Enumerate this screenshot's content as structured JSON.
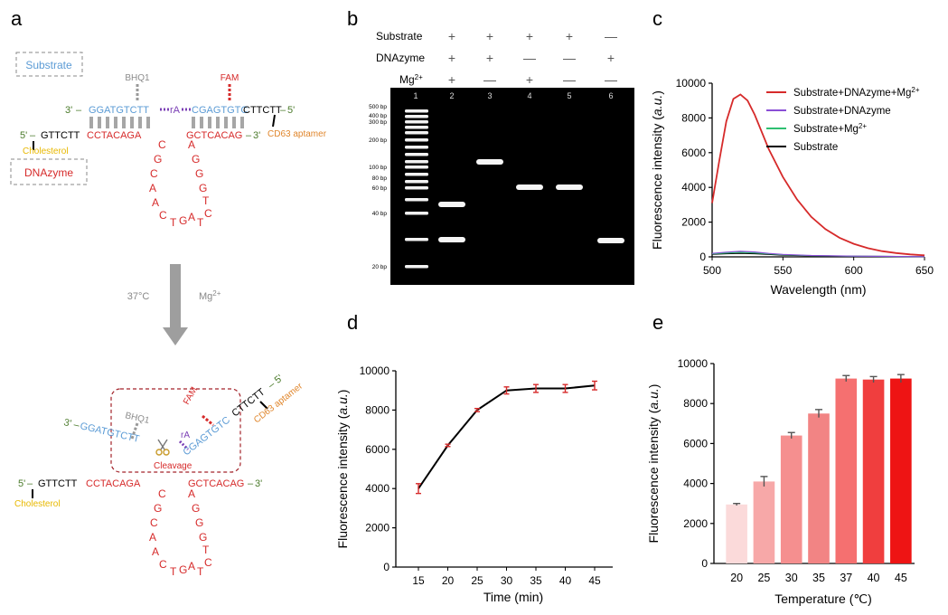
{
  "panels": {
    "a": "a",
    "b": "b",
    "c": "c",
    "d": "d",
    "e": "e"
  },
  "schematic": {
    "substrate_box": "Substrate",
    "dnazyme_box": "DNAzyme",
    "bhq1": "BHQ1",
    "fam": "FAM",
    "cholesterol": "Cholesterol",
    "aptamer": "CD63 aptamer",
    "substrate_left": "GGATGTCTT",
    "ra": "rA",
    "substrate_right": "CGAGTGTC",
    "substrate_tail": "CTTCTT",
    "dz_lead": "GTTCTT",
    "dz_left": "CCTACAGA",
    "dz_right": "GCTCACAG",
    "three_prime": "3'",
    "five_prime": "5'",
    "loop_left": [
      "C",
      "G",
      "C",
      "A",
      "A",
      "C"
    ],
    "loop_bottom": [
      "T",
      "G",
      "A"
    ],
    "loop_right": [
      "A",
      "G",
      "G",
      "G",
      "T",
      "C",
      "T"
    ],
    "condition_temp": "37°C",
    "condition_mg": "Mg",
    "condition_mg_sup": "2+",
    "cleavage": "Cleavage",
    "colors": {
      "blue": "#5b9bd5",
      "red": "#d62a2a",
      "green": "#4a7a2a",
      "orange": "#e0862c",
      "yellow": "#e8b800",
      "purple": "#7b3fb5",
      "gray": "#9e9e9e"
    }
  },
  "gel": {
    "row_labels": [
      "Substrate",
      "DNAzyme",
      "Mg"
    ],
    "mg_sup": "2+",
    "signs": [
      [
        "+",
        "+",
        "+",
        "+",
        "—"
      ],
      [
        "+",
        "+",
        "—",
        "—",
        "+"
      ],
      [
        "+",
        "—",
        "+",
        "—",
        "—"
      ]
    ],
    "lane_numbers": [
      "1",
      "2",
      "3",
      "4",
      "5",
      "6"
    ],
    "ladder_labels": [
      "500 bp",
      "400 bp",
      "300 bp",
      "200 bp",
      "100 bp",
      "80 bp",
      "60 bp",
      "40 bp",
      "20 bp"
    ]
  },
  "chart_data": [
    {
      "panel": "c",
      "type": "line",
      "xlabel": "Wavelength (nm)",
      "ylabel": "Fluorescence intensity (a.u.)",
      "xlim": [
        500,
        650
      ],
      "ylim": [
        0,
        10000
      ],
      "xticks": [
        500,
        550,
        600,
        650
      ],
      "yticks": [
        0,
        2000,
        4000,
        6000,
        8000,
        10000
      ],
      "legend_position": "top-right",
      "series": [
        {
          "name": "Substrate+DNAzyme+Mg2+",
          "color": "#d62a2a",
          "x": [
            500,
            505,
            510,
            515,
            520,
            525,
            530,
            540,
            550,
            560,
            570,
            580,
            590,
            600,
            610,
            620,
            630,
            640,
            650
          ],
          "y": [
            3100,
            5500,
            7800,
            9100,
            9350,
            9000,
            8200,
            6200,
            4600,
            3300,
            2300,
            1600,
            1100,
            750,
            500,
            330,
            220,
            140,
            90
          ]
        },
        {
          "name": "Substrate+DNAzyme",
          "color": "#8a4fd6",
          "x": [
            500,
            510,
            520,
            530,
            540,
            550,
            570,
            600,
            650
          ],
          "y": [
            200,
            270,
            320,
            280,
            200,
            140,
            80,
            40,
            10
          ]
        },
        {
          "name": "Substrate+Mg2+",
          "color": "#2fbf71",
          "x": [
            500,
            510,
            520,
            530,
            540,
            550,
            570,
            600,
            650
          ],
          "y": [
            170,
            220,
            260,
            230,
            170,
            120,
            70,
            35,
            10
          ]
        },
        {
          "name": "Substrate",
          "color": "#000000",
          "x": [
            500,
            510,
            520,
            530,
            540,
            550,
            570,
            600,
            650
          ],
          "y": [
            150,
            180,
            200,
            180,
            140,
            100,
            60,
            30,
            10
          ]
        }
      ]
    },
    {
      "panel": "d",
      "type": "line",
      "xlabel": "Time (min)",
      "ylabel": "Fluorescence intensity (a.u.)",
      "ylim": [
        0,
        10000
      ],
      "xticks": [
        15,
        20,
        25,
        30,
        35,
        40,
        45
      ],
      "yticks": [
        0,
        2000,
        4000,
        6000,
        8000,
        10000
      ],
      "x": [
        15,
        20,
        25,
        30,
        35,
        40,
        45
      ],
      "y": [
        4000,
        6200,
        8000,
        9000,
        9100,
        9100,
        9250
      ],
      "err": [
        250,
        60,
        80,
        180,
        200,
        200,
        220
      ]
    },
    {
      "panel": "e",
      "type": "bar",
      "xlabel": "Temperature (℃)",
      "ylabel": "Fluorescence intensity (a.u.)",
      "ylim": [
        0,
        10000
      ],
      "yticks": [
        0,
        2000,
        4000,
        6000,
        8000,
        10000
      ],
      "categories": [
        "20",
        "25",
        "30",
        "35",
        "37",
        "40",
        "45"
      ],
      "values": [
        2950,
        4100,
        6400,
        7500,
        9250,
        9200,
        9250
      ],
      "err": [
        50,
        250,
        150,
        200,
        150,
        150,
        200
      ],
      "colors": [
        "#fbdada",
        "#f7a8a8",
        "#f58f8f",
        "#f28484",
        "#f57070",
        "#f03e3e",
        "#ee1414"
      ]
    }
  ]
}
